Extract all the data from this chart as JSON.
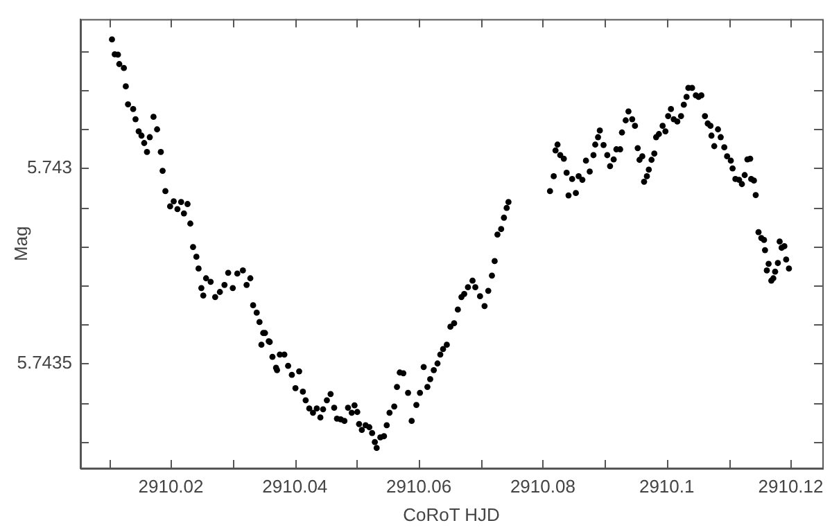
{
  "chart_data": {
    "type": "scatter",
    "xlabel": "CoRoT HJD",
    "ylabel": "Mag",
    "color": "#000000",
    "marker": "circle",
    "grid": false,
    "legend": false,
    "xlim": [
      2910.0054,
      2910.1251
    ],
    "ylim": [
      5.743768,
      5.742619
    ],
    "xticks": [
      {
        "value": 2910.01,
        "label": null
      },
      2910.02,
      {
        "value": 2910.03,
        "label": null
      },
      2910.04,
      {
        "value": 2910.05,
        "label": null
      },
      2910.06,
      {
        "value": 2910.07,
        "label": null
      },
      2910.08,
      {
        "value": 2910.09,
        "label": null
      },
      {
        "value": 2910.1,
        "label": "2910.1"
      },
      {
        "value": 2910.11,
        "label": null
      },
      2910.12
    ],
    "yticks": [
      {
        "value": 5.7427,
        "label": null
      },
      {
        "value": 5.7428,
        "label": null
      },
      {
        "value": 5.7429,
        "label": null
      },
      {
        "value": 5.743,
        "label": "5.743"
      },
      {
        "value": 5.7431,
        "label": null
      },
      {
        "value": 5.7432,
        "label": null
      },
      {
        "value": 5.7433,
        "label": null
      },
      {
        "value": 5.7434,
        "label": null
      },
      5.7435,
      {
        "value": 5.7436,
        "label": null
      },
      {
        "value": 5.7437,
        "label": null
      }
    ],
    "x": [
      2910.01049,
      2910.01094,
      2910.01145,
      2910.01167,
      2910.01241,
      2910.01272,
      2910.01308,
      2910.01391,
      2910.01429,
      2910.0148,
      2910.01525,
      2910.01569,
      2910.01614,
      2910.01659,
      2910.01719,
      2910.01777,
      2910.01837,
      2910.01866,
      2910.01911,
      2910.01987,
      2910.02045,
      2910.02105,
      2910.02165,
      2910.0221,
      2910.02268,
      2910.02313,
      2910.02357,
      2910.02411,
      2910.02446,
      2910.02491,
      2910.02522,
      2910.02567,
      2910.02641,
      2910.02714,
      2910.0279,
      2910.02864,
      2910.02924,
      2910.02998,
      2910.03071,
      2910.03161,
      2910.03221,
      2910.03281,
      2910.03326,
      2910.03384,
      2910.03429,
      2910.03489,
      2910.0346,
      2910.03578,
      2910.03638,
      2910.03696,
      2910.03518,
      2910.03594,
      2910.03712,
      2910.03757,
      2910.0383,
      2910.03891,
      2910.03951,
      2910.04009,
      2910.04069,
      2910.04129,
      2910.04174,
      2910.04232,
      2910.04292,
      2910.04353,
      2910.04411,
      2910.04455,
      2910.04516,
      2910.04576,
      2910.04634,
      2910.04679,
      2910.04739,
      2910.04799,
      2910.04857,
      2910.04917,
      2910.04962,
      2910.05007,
      2910.05036,
      2910.0508,
      2910.05141,
      2910.05201,
      2910.05246,
      2910.0529,
      2910.05319,
      2910.05379,
      2910.05438,
      2910.05482,
      2910.05527,
      2910.05603,
      2910.05647,
      2910.05692,
      2910.0575,
      2910.05826,
      2910.05884,
      2910.0596,
      2910.06018,
      2910.06078,
      2910.06138,
      2910.06183,
      2910.06241,
      2910.06301,
      2910.06346,
      2910.06391,
      2910.06451,
      2910.06509,
      2910.06569,
      2910.06629,
      2910.06687,
      2910.06732,
      2910.06792,
      2910.06866,
      2910.06911,
      2910.06987,
      2910.0706,
      2910.0712,
      2910.07179,
      2910.07223,
      2910.07268,
      2910.07328,
      2910.07373,
      2910.07417,
      2910.07446,
      2910.08116,
      2910.08176,
      2910.08205,
      2910.08237,
      2910.08281,
      2910.08339,
      2910.08384,
      2910.08415,
      2910.08473,
      2910.08533,
      2910.08578,
      2910.08638,
      2910.08696,
      2910.08757,
      2910.08817,
      2910.08846,
      2910.08891,
      2910.0892,
      2910.0898,
      2910.0904,
      2910.09085,
      2910.09143,
      2910.09187,
      2910.09248,
      2910.09277,
      2910.09337,
      2910.09382,
      2910.09442,
      2910.09487,
      2910.09531,
      2910.0956,
      2910.09605,
      2910.09634,
      2910.09679,
      2910.0971,
      2910.09754,
      2910.09799,
      2910.09828,
      2910.09873,
      2910.09933,
      2910.09978,
      2910.10022,
      2910.10067,
      2910.10112,
      2910.1017,
      2910.1023,
      2910.10275,
      2910.10319,
      2910.10348,
      2910.10408,
      2910.10469,
      2910.10513,
      2910.10558,
      2910.10616,
      2910.10661,
      2910.10705,
      2910.10721,
      2910.10766,
      2910.10826,
      2910.1087,
      2910.10928,
      2910.10973,
      2910.11033,
      2910.11062,
      2910.11107,
      2910.11167,
      2910.11212,
      2910.11257,
      2910.11301,
      2910.11346,
      2910.11362,
      2910.11406,
      2910.11435,
      2910.1148,
      2910.11525,
      2910.11569,
      2910.11585,
      2910.11614,
      2910.11643,
      2910.11687,
      2910.11719,
      2910.11748,
      2910.11792,
      2910.11821,
      2910.11853,
      2910.11897,
      2910.11926,
      2910.11971
    ],
    "values": [
      5.742671,
      5.742709,
      5.74271,
      5.742734,
      5.742744,
      5.742791,
      5.742837,
      5.742849,
      5.742875,
      5.742906,
      5.742917,
      5.742936,
      5.742959,
      5.742921,
      5.742869,
      5.742901,
      5.742959,
      5.743007,
      5.743059,
      5.743098,
      5.743085,
      5.743105,
      5.743087,
      5.743116,
      5.743092,
      5.743142,
      5.743202,
      5.743227,
      5.743257,
      5.743307,
      5.743326,
      5.743282,
      5.743291,
      5.74333,
      5.743317,
      5.743299,
      5.743268,
      5.743307,
      5.74327,
      5.743262,
      5.743299,
      5.743282,
      5.743351,
      5.74337,
      5.743394,
      5.743422,
      5.743452,
      5.743443,
      5.743483,
      5.743511,
      5.743422,
      5.743445,
      5.743517,
      5.743477,
      5.743477,
      5.743506,
      5.743529,
      5.743563,
      5.74352,
      5.743572,
      5.743594,
      5.743615,
      5.743626,
      5.743615,
      5.743638,
      5.743617,
      5.743594,
      5.743578,
      5.743613,
      5.743641,
      5.743643,
      5.743647,
      5.743613,
      5.743626,
      5.743607,
      5.743624,
      5.743655,
      5.74367,
      5.743658,
      5.743663,
      5.743678,
      5.743701,
      5.743716,
      5.743689,
      5.743686,
      5.743658,
      5.743626,
      5.74361,
      5.74356,
      5.743523,
      5.743525,
      5.743575,
      5.743647,
      5.743606,
      5.743575,
      5.743509,
      5.74356,
      5.74354,
      5.743517,
      5.7435,
      5.743477,
      5.743463,
      5.743452,
      5.743406,
      5.743397,
      5.743362,
      5.74333,
      5.743322,
      5.743305,
      5.743288,
      5.743305,
      5.743328,
      5.743353,
      5.743314,
      5.743275,
      5.743238,
      5.74317,
      5.743156,
      5.743127,
      5.743102,
      5.743087,
      5.743059,
      5.743021,
      5.742955,
      5.74294,
      5.742967,
      5.742976,
      5.743012,
      5.74307,
      5.743028,
      5.743064,
      5.743021,
      5.74303,
      5.742981,
      5.743009,
      5.742967,
      5.74294,
      5.742921,
      5.742904,
      5.742941,
      5.742967,
      5.742995,
      5.742978,
      5.742952,
      5.742952,
      5.742909,
      5.742878,
      5.742855,
      5.742875,
      5.742892,
      5.742949,
      5.742979,
      5.74297,
      5.743035,
      5.743021,
      5.743004,
      5.742979,
      5.742963,
      5.742921,
      5.742913,
      5.742892,
      5.742906,
      5.742867,
      5.742849,
      5.742875,
      5.742881,
      5.742867,
      5.742838,
      5.742818,
      5.742795,
      5.742795,
      5.742814,
      5.742818,
      5.742814,
      5.742867,
      5.742886,
      5.742892,
      5.742917,
      5.742944,
      5.742901,
      5.742921,
      5.742947,
      5.74297,
      5.742981,
      5.743001,
      5.743028,
      5.74303,
      5.743041,
      5.743018,
      5.742978,
      5.742976,
      5.743028,
      5.743032,
      5.743069,
      5.743164,
      5.743179,
      5.743184,
      5.74321,
      5.743262,
      5.743245,
      5.743288,
      5.743282,
      5.743265,
      5.743243,
      5.743188,
      5.743204,
      5.7432,
      5.743234,
      5.743257
    ]
  }
}
